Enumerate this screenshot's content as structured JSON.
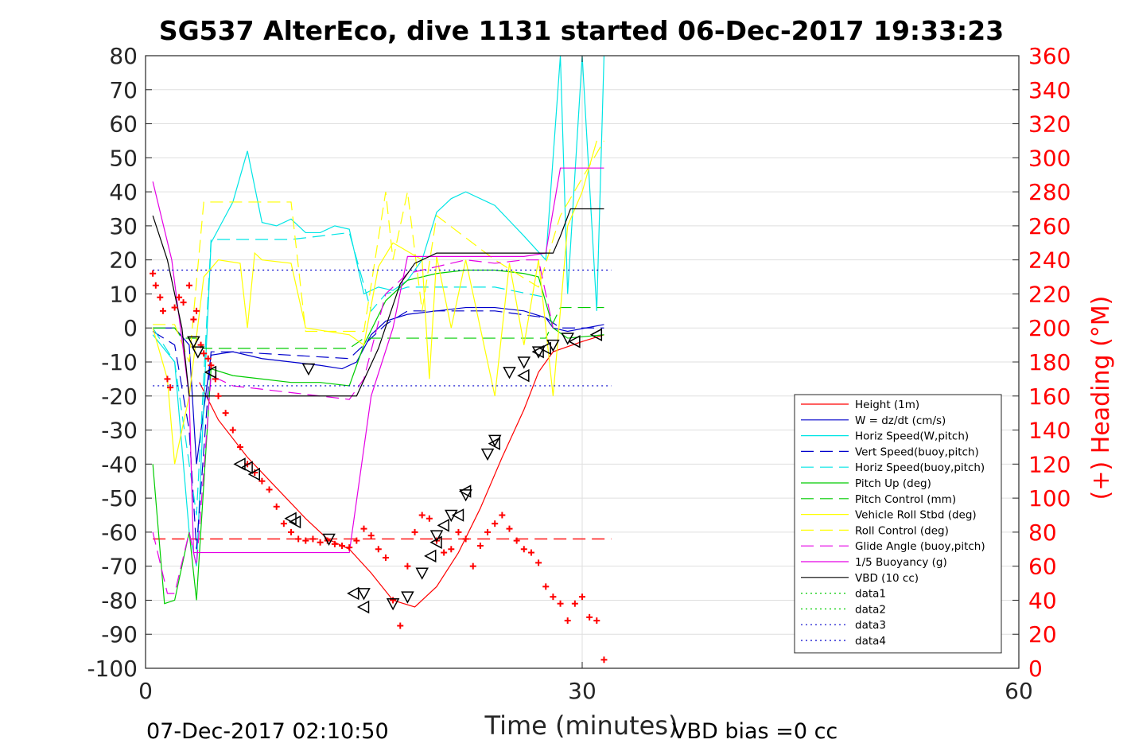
{
  "chart_data": {
    "type": "line",
    "title": "SG537 AlterEco, dive 1131 started 06-Dec-2017 19:33:23",
    "xlabel": "Time (minutes)",
    "ylabel": "",
    "y2label": "(+) Heading (°M)",
    "footer_left": "07-Dec-2017 02:10:50",
    "footer_right": "VBD bias =0 cc",
    "xlim": [
      0,
      60
    ],
    "ylim": [
      -100,
      80
    ],
    "y2lim": [
      0,
      360
    ],
    "xticks": [
      0,
      30,
      60
    ],
    "yticks": [
      80,
      70,
      60,
      50,
      40,
      30,
      20,
      10,
      0,
      -10,
      -20,
      -30,
      -40,
      -50,
      -60,
      -70,
      -80,
      -90,
      -100
    ],
    "y2ticks": [
      360,
      340,
      320,
      300,
      280,
      260,
      240,
      220,
      200,
      180,
      160,
      140,
      120,
      100,
      80,
      60,
      40,
      20,
      0
    ],
    "grid": true,
    "legend_position": "bottom-right",
    "colors": {
      "axis": "#262626",
      "grid": "#dfdfdf",
      "right_axis": "#ff0000"
    },
    "series": [
      {
        "name": "Height (1m)",
        "color": "#ff0000",
        "dash": "solid",
        "x": [
          3.7,
          5,
          7,
          9,
          11,
          12.5,
          14,
          15.5,
          17,
          18.5,
          20,
          21.5,
          23,
          24.5,
          26,
          27,
          28,
          30,
          31.5
        ],
        "y": [
          -16,
          -27,
          -38,
          -47,
          -56,
          -62,
          -65,
          -72,
          -80,
          -82,
          -76,
          -66,
          -53,
          -38,
          -24,
          -13,
          -7,
          -4,
          -2
        ]
      },
      {
        "name": "W = dz/dt (cm/s)",
        "color": "#0000cc",
        "dash": "solid",
        "x": [
          0.5,
          2,
          3,
          3.5,
          4.5,
          6,
          8,
          10,
          12,
          13.5,
          14.5,
          15.5,
          16.5,
          18,
          20,
          22,
          24,
          26,
          27.5,
          28,
          29,
          31.5
        ],
        "y": [
          0,
          0,
          -5,
          -40,
          -8,
          -7,
          -9,
          -10,
          -11,
          -12,
          -10,
          -2,
          2,
          4,
          5,
          6,
          6,
          5,
          3,
          0,
          -1,
          1
        ]
      },
      {
        "name": "Horiz Speed(W,pitch)",
        "color": "#00e5e5",
        "dash": "solid",
        "x": [
          0.5,
          2,
          3,
          3.5,
          4.5,
          6,
          7,
          8,
          9,
          10,
          11,
          12,
          13,
          14,
          15,
          16,
          17,
          18,
          19,
          20,
          21,
          22,
          24,
          26,
          27.5,
          28.5,
          29,
          30,
          31,
          31.5
        ],
        "y": [
          -2,
          -10,
          -60,
          -70,
          25,
          37,
          52,
          31,
          30,
          32,
          28,
          28,
          30,
          29,
          10,
          12,
          11,
          14,
          20,
          34,
          38,
          40,
          36,
          27,
          20,
          80,
          10,
          80,
          5,
          80
        ]
      },
      {
        "name": "Vert Speed(buoy,pitch)",
        "color": "#0000cc",
        "dash": "long",
        "x": [
          0.5,
          2,
          3,
          3.5,
          4.5,
          6,
          10,
          14,
          15.5,
          16.5,
          18,
          24,
          27.5,
          28.5,
          31.5
        ],
        "y": [
          -1,
          -5,
          -30,
          -65,
          -7,
          -7,
          -8,
          -9,
          -3,
          1,
          5,
          5,
          3,
          0,
          0
        ]
      },
      {
        "name": "Horiz Speed(buoy,pitch)",
        "color": "#00e5e5",
        "dash": "long",
        "x": [
          0.5,
          2,
          3.5,
          4.5,
          6,
          10,
          14,
          15.5,
          16.5,
          18,
          24,
          27.5
        ],
        "y": [
          0,
          -10,
          -55,
          26,
          26,
          26,
          28,
          5,
          10,
          12,
          12,
          9
        ]
      },
      {
        "name": "Pitch Up (deg)",
        "color": "#00cc00",
        "dash": "solid",
        "x": [
          0.5,
          1.3,
          2,
          3,
          3.5,
          4.5,
          6,
          8,
          10,
          12,
          14,
          15,
          16.5,
          18,
          20,
          22,
          24,
          26,
          27,
          28,
          29,
          31.5
        ],
        "y": [
          -40,
          -81,
          -80,
          -60,
          -80,
          -12,
          -14,
          -15,
          -16,
          -16,
          -17,
          -5,
          8,
          14,
          16,
          17,
          17,
          16,
          15,
          0,
          -3,
          -2
        ]
      },
      {
        "name": "Pitch Control (mm)",
        "color": "#00cc00",
        "dash": "long",
        "x": [
          0.5,
          2,
          2.5,
          3.5,
          4,
          9,
          14,
          15,
          16.5,
          24,
          27.5,
          28.5,
          31.5
        ],
        "y": [
          0,
          0,
          -3,
          -3,
          -6,
          -6,
          -6,
          -3,
          -3,
          -3,
          -3,
          6,
          6
        ]
      },
      {
        "name": "Vehicle Roll Stbd (deg)",
        "color": "#ffff00",
        "dash": "solid",
        "x": [
          0.5,
          1.5,
          2,
          3,
          4,
          5,
          6.5,
          7,
          7.5,
          8,
          10,
          11,
          14,
          15,
          16,
          17,
          19,
          19.5,
          20,
          21,
          22,
          24,
          25,
          26,
          27,
          28,
          29,
          30,
          31
        ],
        "y": [
          0,
          -15,
          -40,
          -20,
          15,
          20,
          19,
          0,
          22,
          20,
          19,
          0,
          -2,
          -5,
          18,
          25,
          20,
          -15,
          21,
          0,
          20,
          -20,
          19,
          -5,
          20,
          -20,
          30,
          40,
          55
        ]
      },
      {
        "name": "Roll Control (deg)",
        "color": "#ffff00",
        "dash": "long",
        "x": [
          0.5,
          2,
          3,
          4,
          10,
          11,
          15,
          16.5,
          17,
          18,
          19,
          20,
          24,
          27,
          28.5,
          31.5
        ],
        "y": [
          1,
          1,
          -10,
          37,
          37,
          -1,
          -1,
          40,
          20,
          40,
          5,
          33,
          20,
          12,
          33,
          55
        ]
      },
      {
        "name": "Glide Angle (buoy,pitch)",
        "color": "#e500e5",
        "dash": "long",
        "x": [
          0.5,
          1.5,
          2,
          3,
          3.5,
          4.5,
          6,
          8,
          10,
          12,
          14,
          15,
          16.5,
          18,
          20,
          22,
          24,
          26,
          27,
          28
        ],
        "y": [
          -60,
          -78,
          -78,
          -60,
          -70,
          -14,
          -17,
          -18,
          -19,
          -20,
          -21,
          -15,
          10,
          16,
          18,
          20,
          19,
          20,
          20,
          0
        ]
      },
      {
        "name": "1/5 Buoyancy (g)",
        "color": "#e500e5",
        "dash": "solid",
        "x": [
          0.5,
          1.8,
          3,
          3.3,
          4,
          10,
          13,
          14,
          15.5,
          17,
          18,
          20,
          26,
          27.5,
          28.5,
          31.5
        ],
        "y": [
          43,
          20,
          -20,
          -66,
          -66,
          -66,
          -66,
          -66,
          -20,
          0,
          21,
          21,
          21,
          22,
          47,
          47
        ]
      },
      {
        "name": "VBD (10 cc)",
        "color": "#000000",
        "dash": "solid",
        "x": [
          0.5,
          1.5,
          2.5,
          3,
          7,
          10,
          12,
          13.5,
          14.5,
          16,
          17.5,
          18.5,
          20,
          24,
          28,
          28.5,
          29.2,
          31.5
        ],
        "y": [
          33,
          20,
          0,
          -20,
          -20,
          -20,
          -20,
          -20,
          -20,
          -6,
          13,
          19,
          22,
          22,
          22,
          27,
          35,
          35
        ]
      },
      {
        "name": "data1",
        "color": "#00cc00",
        "dash": "dot",
        "x": [],
        "y": []
      },
      {
        "name": "data2",
        "color": "#00cc00",
        "dash": "dot",
        "x": [],
        "y": []
      },
      {
        "name": "data3",
        "color": "#0000cc",
        "dash": "dot",
        "x": [
          0.5,
          32
        ],
        "y": [
          17,
          17
        ]
      },
      {
        "name": "data4",
        "color": "#0000cc",
        "dash": "dot",
        "x": [
          0.5,
          32
        ],
        "y": [
          -17,
          -17
        ]
      }
    ],
    "extra_lines": [
      {
        "color": "#ff0000",
        "dash": "long",
        "x": [
          0.5,
          32
        ],
        "y": [
          -62,
          -62
        ]
      }
    ],
    "heading": {
      "name": "(+) Heading (°M)",
      "color": "#ff0000",
      "x": [
        0.5,
        0.7,
        1,
        1.2,
        1.5,
        1.7,
        2,
        2.3,
        2.6,
        3,
        3.3,
        3.5,
        3.8,
        4,
        4.3,
        4.5,
        4.8,
        5,
        5.5,
        6,
        6.5,
        7,
        7.5,
        8,
        8.5,
        9,
        9.5,
        10,
        10.5,
        11,
        11.5,
        12,
        12.5,
        13,
        13.5,
        14,
        14.5,
        15,
        15.5,
        16,
        16.5,
        17,
        17.5,
        18,
        18.5,
        19,
        19.5,
        20,
        20.5,
        21,
        21.5,
        22,
        22.5,
        23,
        23.5,
        24,
        24.5,
        25,
        25.5,
        26,
        26.5,
        27,
        27.5,
        28,
        28.5,
        29,
        29.5,
        30,
        30.5,
        31,
        31.5
      ],
      "y": [
        232,
        225,
        218,
        210,
        170,
        165,
        212,
        218,
        215,
        225,
        205,
        210,
        190,
        185,
        182,
        178,
        170,
        160,
        150,
        140,
        130,
        120,
        115,
        110,
        105,
        95,
        85,
        80,
        76,
        75,
        76,
        74,
        75,
        73,
        72,
        71,
        75,
        82,
        78,
        70,
        65,
        40,
        25,
        60,
        80,
        90,
        88,
        75,
        68,
        70,
        80,
        76,
        60,
        72,
        80,
        85,
        90,
        82,
        75,
        70,
        68,
        62,
        48,
        42,
        38,
        28,
        38,
        42,
        30,
        28,
        5
      ]
    },
    "markers_down": {
      "x": [
        3.3,
        3.6,
        11.2,
        12.6,
        15,
        17,
        18,
        19,
        20,
        21,
        22,
        23.5,
        24,
        25,
        26,
        27,
        28,
        29
      ],
      "y": [
        -4,
        -7,
        -12,
        -62,
        -78,
        -81,
        -79,
        -72,
        -61,
        -55,
        -49,
        -37,
        -33,
        -13,
        -10,
        -7,
        -5,
        -3
      ]
    },
    "markers_left": {
      "x": [
        4.5,
        6.5,
        7,
        7.5,
        10,
        10.3,
        14.3,
        15,
        19.6,
        20,
        20.5,
        21.5,
        22,
        24,
        26,
        27,
        27.5,
        29.5,
        31
      ],
      "y": [
        -13,
        -40,
        -41,
        -43,
        -56,
        -57,
        -78,
        -82,
        -67,
        -63,
        -58,
        -55,
        -48,
        -34,
        -14,
        -7,
        -6,
        -4,
        -2
      ]
    }
  }
}
